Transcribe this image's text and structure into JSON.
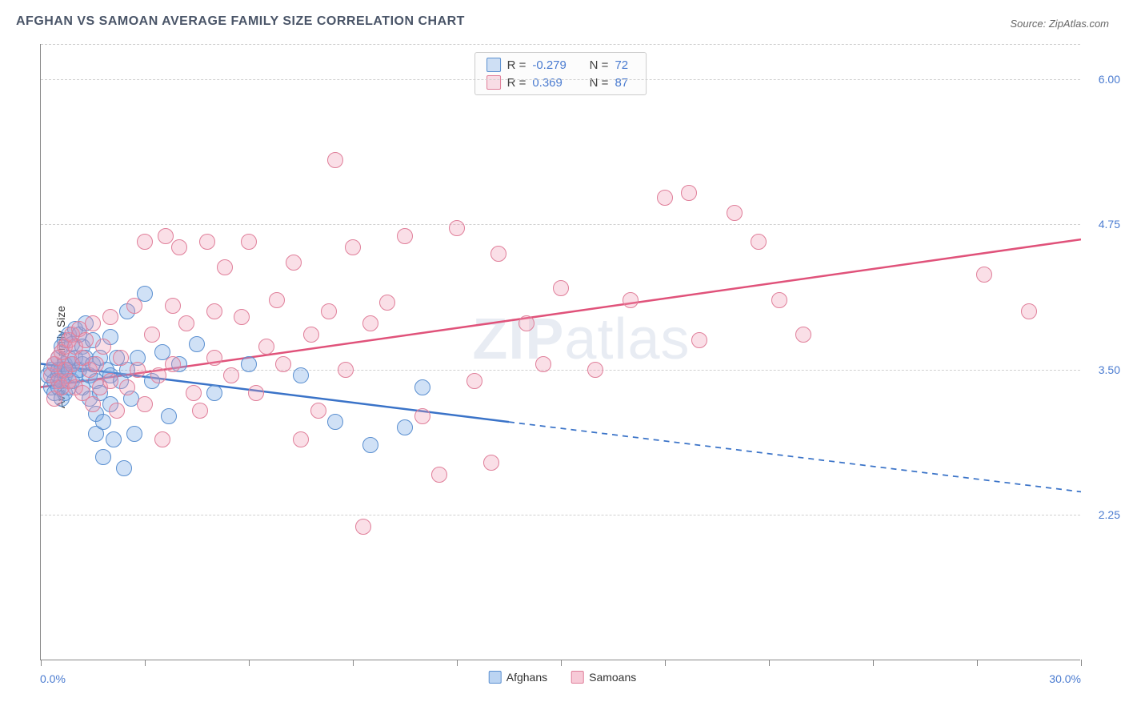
{
  "title": "AFGHAN VS SAMOAN AVERAGE FAMILY SIZE CORRELATION CHART",
  "source": "Source: ZipAtlas.com",
  "ylabel": "Average Family Size",
  "watermark_zip": "ZIP",
  "watermark_atlas": "atlas",
  "xaxis": {
    "min_label": "0.0%",
    "max_label": "30.0%",
    "min": 0,
    "max": 30,
    "tick_positions": [
      0,
      3,
      6,
      9,
      12,
      15,
      18,
      21,
      24,
      27,
      30
    ]
  },
  "yaxis": {
    "min": 1.0,
    "max": 6.3,
    "ticks": [
      2.25,
      3.5,
      4.75,
      6.0
    ],
    "tick_labels": [
      "2.25",
      "3.50",
      "4.75",
      "6.00"
    ]
  },
  "series": [
    {
      "name": "Afghans",
      "color_fill": "rgba(120,170,230,0.35)",
      "color_stroke": "#5a8fd0",
      "marker_radius": 10,
      "R": "-0.279",
      "N": "72",
      "trend": {
        "x1": 0,
        "y1": 3.55,
        "x2_solid": 13.5,
        "y2_solid": 3.05,
        "x2_dash": 30,
        "y2_dash": 2.45,
        "color": "#3a73c8",
        "width": 2.5
      },
      "points": [
        [
          0.2,
          3.45
        ],
        [
          0.3,
          3.5
        ],
        [
          0.3,
          3.35
        ],
        [
          0.4,
          3.55
        ],
        [
          0.4,
          3.4
        ],
        [
          0.4,
          3.3
        ],
        [
          0.5,
          3.6
        ],
        [
          0.5,
          3.45
        ],
        [
          0.5,
          3.5
        ],
        [
          0.5,
          3.35
        ],
        [
          0.6,
          3.7
        ],
        [
          0.6,
          3.5
        ],
        [
          0.6,
          3.4
        ],
        [
          0.6,
          3.25
        ],
        [
          0.7,
          3.75
        ],
        [
          0.7,
          3.55
        ],
        [
          0.7,
          3.45
        ],
        [
          0.7,
          3.3
        ],
        [
          0.8,
          3.8
        ],
        [
          0.8,
          3.6
        ],
        [
          0.8,
          3.5
        ],
        [
          0.8,
          3.35
        ],
        [
          0.9,
          3.72
        ],
        [
          0.9,
          3.55
        ],
        [
          0.9,
          3.4
        ],
        [
          1.0,
          3.85
        ],
        [
          1.0,
          3.6
        ],
        [
          1.0,
          3.45
        ],
        [
          1.1,
          3.8
        ],
        [
          1.1,
          3.5
        ],
        [
          1.2,
          3.7
        ],
        [
          1.2,
          3.55
        ],
        [
          1.2,
          3.35
        ],
        [
          1.3,
          3.9
        ],
        [
          1.3,
          3.6
        ],
        [
          1.4,
          3.45
        ],
        [
          1.4,
          3.25
        ],
        [
          1.5,
          3.75
        ],
        [
          1.5,
          3.55
        ],
        [
          1.6,
          3.4
        ],
        [
          1.6,
          3.12
        ],
        [
          1.6,
          2.95
        ],
        [
          1.7,
          3.6
        ],
        [
          1.7,
          3.3
        ],
        [
          1.8,
          3.05
        ],
        [
          1.8,
          2.75
        ],
        [
          1.9,
          3.5
        ],
        [
          2.0,
          3.78
        ],
        [
          2.0,
          3.45
        ],
        [
          2.0,
          3.2
        ],
        [
          2.1,
          2.9
        ],
        [
          2.2,
          3.6
        ],
        [
          2.3,
          3.4
        ],
        [
          2.4,
          2.65
        ],
        [
          2.5,
          4.0
        ],
        [
          2.5,
          3.5
        ],
        [
          2.6,
          3.25
        ],
        [
          2.7,
          2.95
        ],
        [
          2.8,
          3.6
        ],
        [
          3.0,
          4.15
        ],
        [
          3.2,
          3.4
        ],
        [
          3.5,
          3.65
        ],
        [
          3.7,
          3.1
        ],
        [
          4.0,
          3.55
        ],
        [
          4.5,
          3.72
        ],
        [
          5.0,
          3.3
        ],
        [
          6.0,
          3.55
        ],
        [
          7.5,
          3.45
        ],
        [
          8.5,
          3.05
        ],
        [
          9.5,
          2.85
        ],
        [
          10.5,
          3.0
        ],
        [
          11.0,
          3.35
        ]
      ]
    },
    {
      "name": "Samoans",
      "color_fill": "rgba(240,150,175,0.30)",
      "color_stroke": "#e07f9a",
      "marker_radius": 10,
      "R": "0.369",
      "N": "87",
      "trend": {
        "x1": 0,
        "y1": 3.35,
        "x2_solid": 30,
        "y2_solid": 4.62,
        "color": "#e0527a",
        "width": 2.5
      },
      "points": [
        [
          0.3,
          3.45
        ],
        [
          0.4,
          3.55
        ],
        [
          0.4,
          3.25
        ],
        [
          0.5,
          3.6
        ],
        [
          0.5,
          3.4
        ],
        [
          0.6,
          3.65
        ],
        [
          0.6,
          3.35
        ],
        [
          0.7,
          3.7
        ],
        [
          0.7,
          3.5
        ],
        [
          0.8,
          3.75
        ],
        [
          0.8,
          3.4
        ],
        [
          0.9,
          3.8
        ],
        [
          0.9,
          3.55
        ],
        [
          1.0,
          3.7
        ],
        [
          1.0,
          3.35
        ],
        [
          1.1,
          3.85
        ],
        [
          1.2,
          3.6
        ],
        [
          1.2,
          3.3
        ],
        [
          1.3,
          3.75
        ],
        [
          1.4,
          3.5
        ],
        [
          1.5,
          3.9
        ],
        [
          1.5,
          3.2
        ],
        [
          1.6,
          3.55
        ],
        [
          1.7,
          3.35
        ],
        [
          1.8,
          3.7
        ],
        [
          2.0,
          3.4
        ],
        [
          2.0,
          3.95
        ],
        [
          2.2,
          3.15
        ],
        [
          2.3,
          3.6
        ],
        [
          2.5,
          3.35
        ],
        [
          2.7,
          4.05
        ],
        [
          2.8,
          3.5
        ],
        [
          3.0,
          3.2
        ],
        [
          3.0,
          4.6
        ],
        [
          3.2,
          3.8
        ],
        [
          3.4,
          3.45
        ],
        [
          3.5,
          2.9
        ],
        [
          3.6,
          4.65
        ],
        [
          3.8,
          4.05
        ],
        [
          3.8,
          3.55
        ],
        [
          4.0,
          4.55
        ],
        [
          4.2,
          3.9
        ],
        [
          4.4,
          3.3
        ],
        [
          4.6,
          3.15
        ],
        [
          4.8,
          4.6
        ],
        [
          5.0,
          3.6
        ],
        [
          5.0,
          4.0
        ],
        [
          5.3,
          4.38
        ],
        [
          5.5,
          3.45
        ],
        [
          5.8,
          3.95
        ],
        [
          6.0,
          4.6
        ],
        [
          6.2,
          3.3
        ],
        [
          6.5,
          3.7
        ],
        [
          6.8,
          4.1
        ],
        [
          7.0,
          3.55
        ],
        [
          7.3,
          4.42
        ],
        [
          7.5,
          2.9
        ],
        [
          7.8,
          3.8
        ],
        [
          8.0,
          3.15
        ],
        [
          8.3,
          4.0
        ],
        [
          8.5,
          5.3
        ],
        [
          8.8,
          3.5
        ],
        [
          9.0,
          4.55
        ],
        [
          9.3,
          2.15
        ],
        [
          9.5,
          3.9
        ],
        [
          10.0,
          4.08
        ],
        [
          10.5,
          4.65
        ],
        [
          11.0,
          3.1
        ],
        [
          11.5,
          2.6
        ],
        [
          12.0,
          4.72
        ],
        [
          12.5,
          3.4
        ],
        [
          13.0,
          2.7
        ],
        [
          13.2,
          4.5
        ],
        [
          14.0,
          3.9
        ],
        [
          14.5,
          3.55
        ],
        [
          15.0,
          4.2
        ],
        [
          16.0,
          3.5
        ],
        [
          17.0,
          4.1
        ],
        [
          18.0,
          4.98
        ],
        [
          18.7,
          5.02
        ],
        [
          19.0,
          3.75
        ],
        [
          20.0,
          4.85
        ],
        [
          20.7,
          4.6
        ],
        [
          21.3,
          4.1
        ],
        [
          22.0,
          3.8
        ],
        [
          27.2,
          4.32
        ],
        [
          28.5,
          4.0
        ]
      ]
    }
  ],
  "legend_bottom": [
    {
      "label": "Afghans",
      "fill": "rgba(120,170,230,0.5)",
      "stroke": "#5a8fd0"
    },
    {
      "label": "Samoans",
      "fill": "rgba(240,150,175,0.5)",
      "stroke": "#e07f9a"
    }
  ]
}
